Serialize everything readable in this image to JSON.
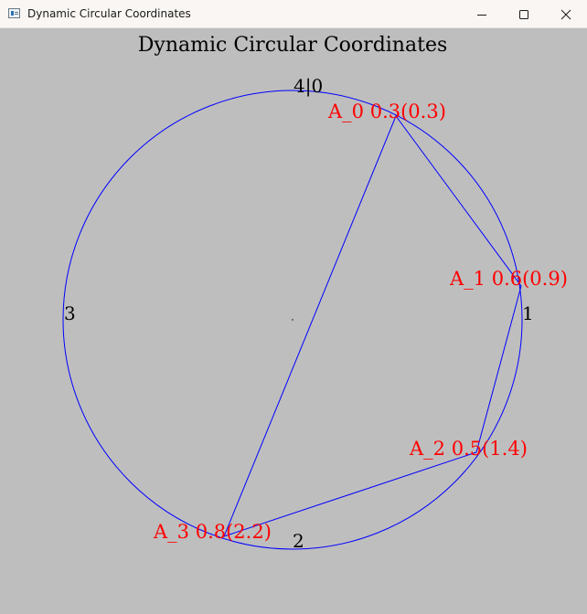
{
  "window": {
    "title": "Dynamic Circular Coordinates",
    "controls": {
      "minimize_icon": "minimize-icon",
      "maximize_icon": "maximize-icon",
      "close_icon": "close-icon"
    }
  },
  "figure": {
    "heading": "Dynamic Circular Coordinates",
    "background_color": "#bebebe",
    "circle_color": "#0000ff",
    "polygon_color": "#0000ff",
    "label_color": "#ff0000",
    "axis_label_color": "#000000",
    "axis_labels": {
      "top": "4|0",
      "right": "1",
      "bottom": "2",
      "left": "3"
    },
    "points": [
      {
        "label": "A_0 0.3(0.3)"
      },
      {
        "label": "A_1 0.6(0.9)"
      },
      {
        "label": "A_2 0.5(1.4)"
      },
      {
        "label": "A_3 0.8(2.2)"
      }
    ]
  }
}
